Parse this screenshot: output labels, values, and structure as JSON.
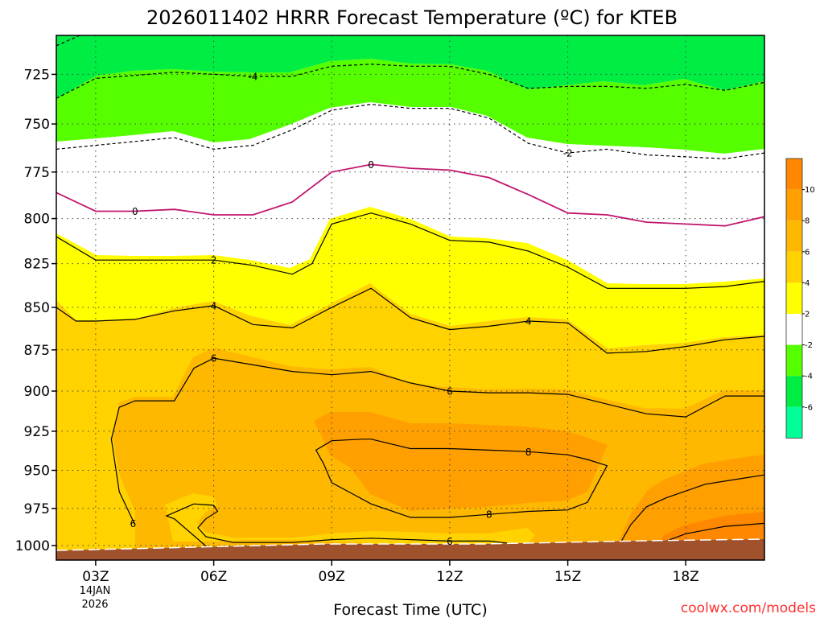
{
  "chart_data": {
    "type": "heatmap",
    "title": "2026011402 HRRR Forecast Temperature (ºC) for KTEB",
    "xlabel": "Forecast Time (UTC)",
    "ylabel": "",
    "x_ticks": [
      "03Z",
      "06Z",
      "09Z",
      "12Z",
      "15Z",
      "18Z"
    ],
    "x_tick_hours": [
      3,
      6,
      9,
      12,
      15,
      18
    ],
    "x_sublabels": [
      "14JAN",
      "2026"
    ],
    "xlim": [
      2,
      20
    ],
    "y_ticks": [
      725,
      750,
      775,
      800,
      825,
      850,
      875,
      900,
      925,
      950,
      975,
      1000
    ],
    "ylim": [
      1010,
      706
    ],
    "y_scale": "log",
    "y_inverted": true,
    "grid": true,
    "contour_interval_c": 2,
    "colorbar": {
      "labels": [
        "10",
        "8",
        "6",
        "4",
        "2",
        "-2",
        "-4",
        "-6"
      ],
      "bins": [
        {
          "min": 10,
          "max": 12,
          "color": "#ff8800"
        },
        {
          "min": 8,
          "max": 10,
          "color": "#ffa000"
        },
        {
          "min": 6,
          "max": 8,
          "color": "#ffb800"
        },
        {
          "min": 4,
          "max": 6,
          "color": "#ffd200"
        },
        {
          "min": 2,
          "max": 4,
          "color": "#ffff00"
        },
        {
          "min": -2,
          "max": 2,
          "color": "#ffffff"
        },
        {
          "min": -4,
          "max": -2,
          "color": "#55ff00"
        },
        {
          "min": -6,
          "max": -4,
          "color": "#00ee44"
        },
        {
          "min": -8,
          "max": -6,
          "color": "#00ff99"
        }
      ]
    },
    "series": [
      {
        "name": "-6",
        "level": -6,
        "dashed": true,
        "x": [
          2.0,
          2.6
        ],
        "y": [
          711,
          706
        ]
      },
      {
        "name": "-4",
        "level": -4,
        "dashed": true,
        "x": [
          2,
          3,
          5,
          7,
          8,
          9,
          10,
          11,
          12,
          13,
          14,
          15,
          16,
          17,
          18,
          19,
          20
        ],
        "y": [
          737,
          727,
          724,
          726,
          726,
          721,
          720,
          721,
          721,
          725,
          732,
          731,
          731,
          732,
          730,
          733,
          729
        ]
      },
      {
        "name": "-2",
        "level": -2,
        "dashed": true,
        "x": [
          2,
          3,
          5,
          6,
          7,
          8,
          9,
          10,
          11,
          12,
          13,
          14,
          15,
          16,
          17,
          18,
          19,
          20
        ],
        "y": [
          763,
          761,
          757,
          763,
          761,
          753,
          743,
          740,
          742,
          742,
          747,
          760,
          765,
          763,
          766,
          767,
          768,
          765
        ]
      },
      {
        "name": "0",
        "level": 0,
        "dashed": false,
        "color": "#c0166e",
        "x": [
          2,
          3,
          4,
          5,
          6,
          7,
          8,
          9,
          10,
          11,
          12,
          13,
          14,
          15,
          16,
          17,
          18,
          19,
          20
        ],
        "y": [
          786,
          796,
          796,
          795,
          798,
          798,
          791,
          775,
          771,
          773,
          774,
          778,
          787,
          797,
          798,
          802,
          803,
          804,
          799
        ]
      },
      {
        "name": "2",
        "level": 2,
        "dashed": false,
        "x": [
          2,
          3,
          4,
          5,
          6,
          7,
          8,
          8.5,
          9,
          10,
          11,
          12,
          13,
          14,
          15,
          16,
          17,
          18,
          19,
          20
        ],
        "y": [
          810,
          823,
          823,
          823,
          823,
          826,
          831,
          825,
          803,
          797,
          803,
          812,
          813,
          818,
          827,
          839,
          839,
          839,
          838,
          835
        ]
      },
      {
        "name": "4",
        "level": 4,
        "dashed": false,
        "x": [
          2,
          2.5,
          3,
          4,
          5,
          6,
          7,
          8,
          9,
          10,
          11,
          12,
          13,
          14,
          15,
          16,
          17,
          18,
          19,
          20
        ],
        "y": [
          850,
          858,
          858,
          857,
          852,
          849,
          860,
          862,
          850,
          839,
          856,
          863,
          861,
          858,
          859,
          877,
          876,
          873,
          869,
          867
        ]
      },
      {
        "name": "6",
        "level": 6,
        "dashed": false,
        "x": [
          4.0,
          3.6,
          3.4,
          3.6,
          4.0,
          5.0,
          5.5,
          6.0,
          7.0,
          8.0,
          9.0,
          10.0,
          11.0,
          12.0,
          13.0,
          14.0,
          15.0,
          16.0,
          17.0,
          18.0,
          19.0,
          20.0
        ],
        "y": [
          986,
          964,
          930,
          910,
          906,
          906,
          886,
          880,
          884,
          888,
          890,
          888,
          895,
          900,
          901,
          901,
          902,
          908,
          914,
          916,
          903,
          903
        ]
      },
      {
        "name": "6",
        "level": 6,
        "dashed": false,
        "x": [
          5.5,
          6.0,
          6.1,
          5.8,
          5.6,
          5.8,
          6.5,
          8.0,
          9.0,
          10.0,
          11.0,
          12.0,
          13.0,
          14.0,
          14.2,
          14.0,
          13.0,
          12.0,
          11.0,
          10.0,
          9.0,
          8.0,
          7.0,
          6.0,
          5.0,
          4.8,
          5.5
        ],
        "y": [
          972,
          973,
          977,
          982,
          988,
          994,
          998,
          998,
          996,
          995,
          996,
          997,
          997,
          1000,
          1004,
          1008,
          1009,
          1008,
          1008,
          1006,
          1005,
          1004,
          1004,
          1005,
          982,
          980,
          972
        ]
      },
      {
        "name": "8",
        "level": 8,
        "dashed": false,
        "x": [
          9.5,
          9.0,
          8.8,
          8.6,
          9.0,
          9.8,
          10.0,
          11.0,
          12.0,
          13.0,
          14.0,
          15.0,
          15.5,
          16.0,
          15.5,
          15.0,
          14.0,
          13.0,
          12.0,
          11.0,
          10.0,
          9.5
        ],
        "y": [
          965,
          958,
          946,
          937,
          931,
          930,
          930,
          936,
          936,
          937,
          938,
          940,
          943,
          947,
          971,
          976,
          977,
          979,
          981,
          981,
          972,
          965
        ]
      },
      {
        "name": "8",
        "level": 8,
        "dashed": false,
        "x": [
          16.5,
          16.3,
          16.6,
          17.0,
          17.5,
          18.5,
          19.5,
          20.0
        ],
        "y": [
          1010,
          1000,
          986,
          974,
          968,
          959,
          955,
          953
        ]
      },
      {
        "name": "10",
        "level": 10,
        "dashed": false,
        "x": [
          17.0,
          17.5,
          18.0,
          19.0,
          20.0
        ],
        "y": [
          1008,
          997,
          992,
          987,
          985
        ]
      }
    ],
    "contour_labels": [
      {
        "text": "-4",
        "x": 7.0,
        "y": 726
      },
      {
        "text": "-2",
        "x": 15.0,
        "y": 765
      },
      {
        "text": "0",
        "x": 4.0,
        "y": 796
      },
      {
        "text": "0",
        "x": 10.0,
        "y": 771
      },
      {
        "text": "2",
        "x": 6.0,
        "y": 823
      },
      {
        "text": "4",
        "x": 6.0,
        "y": 849
      },
      {
        "text": "4",
        "x": 14.0,
        "y": 858
      },
      {
        "text": "6",
        "x": 6.0,
        "y": 880
      },
      {
        "text": "6",
        "x": 12.0,
        "y": 900
      },
      {
        "text": "6",
        "x": 3.95,
        "y": 985
      },
      {
        "text": "6",
        "x": 12.0,
        "y": 997
      },
      {
        "text": "8",
        "x": 14.0,
        "y": 938
      },
      {
        "text": "8",
        "x": 13.0,
        "y": 979
      }
    ]
  },
  "credit": "coolwx.com/models"
}
